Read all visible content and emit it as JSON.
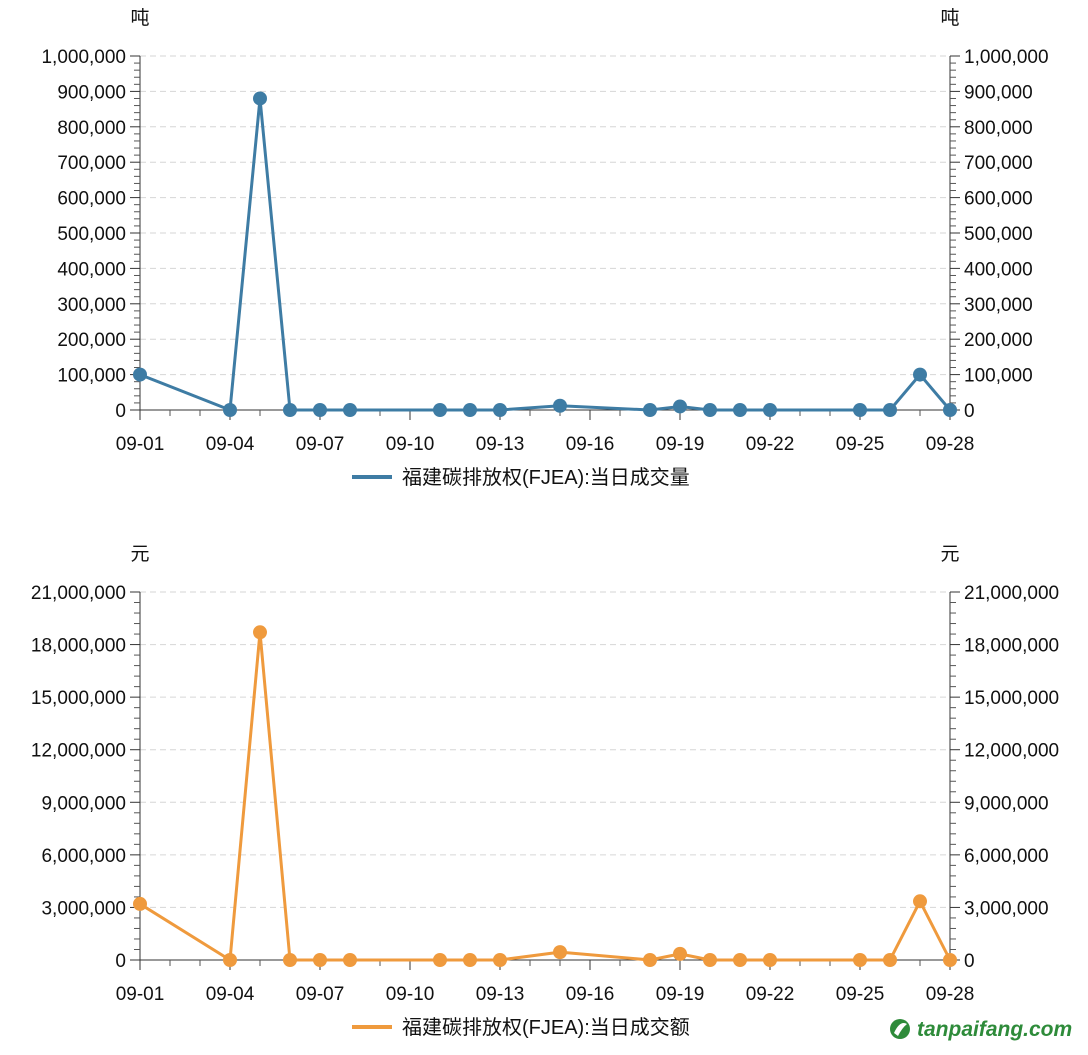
{
  "chart_data": [
    {
      "type": "line",
      "unit_left": "吨",
      "unit_right": "吨",
      "legend": "福建碳排放权(FJEA):当日成交量",
      "color": "#3e7ca4",
      "x_ticks": [
        "09-01",
        "09-04",
        "09-07",
        "09-10",
        "09-13",
        "09-16",
        "09-19",
        "09-22",
        "09-25",
        "09-28"
      ],
      "y_ticks": [
        "0",
        "100,000",
        "200,000",
        "300,000",
        "400,000",
        "500,000",
        "600,000",
        "700,000",
        "800,000",
        "900,000",
        "1,000,000"
      ],
      "ylim": [
        0,
        1000000
      ],
      "grid": true,
      "series": [
        {
          "name": "福建碳排放权(FJEA):当日成交量",
          "x": [
            "09-01",
            "09-04",
            "09-05",
            "09-06",
            "09-07",
            "09-08",
            "09-11",
            "09-12",
            "09-13",
            "09-15",
            "09-18",
            "09-19",
            "09-20",
            "09-21",
            "09-22",
            "09-25",
            "09-26",
            "09-27",
            "09-28"
          ],
          "values": [
            100000,
            0,
            880000,
            0,
            0,
            0,
            0,
            0,
            0,
            12000,
            0,
            10000,
            0,
            0,
            0,
            0,
            0,
            100000,
            0
          ]
        }
      ]
    },
    {
      "type": "line",
      "unit_left": "元",
      "unit_right": "元",
      "legend": "福建碳排放权(FJEA):当日成交额",
      "color": "#ef9a3d",
      "x_ticks": [
        "09-01",
        "09-04",
        "09-07",
        "09-10",
        "09-13",
        "09-16",
        "09-19",
        "09-22",
        "09-25",
        "09-28"
      ],
      "y_ticks": [
        "0",
        "3,000,000",
        "6,000,000",
        "9,000,000",
        "12,000,000",
        "15,000,000",
        "18,000,000",
        "21,000,000"
      ],
      "ylim": [
        0,
        21000000
      ],
      "grid": true,
      "series": [
        {
          "name": "福建碳排放权(FJEA):当日成交额",
          "x": [
            "09-01",
            "09-04",
            "09-05",
            "09-06",
            "09-07",
            "09-08",
            "09-11",
            "09-12",
            "09-13",
            "09-15",
            "09-18",
            "09-19",
            "09-20",
            "09-21",
            "09-22",
            "09-25",
            "09-26",
            "09-27",
            "09-28"
          ],
          "values": [
            3200000,
            0,
            18700000,
            0,
            0,
            0,
            0,
            0,
            0,
            450000,
            0,
            350000,
            0,
            0,
            0,
            0,
            0,
            3350000,
            0
          ]
        }
      ]
    }
  ],
  "watermark": {
    "text": "tanpaifang.com",
    "logo": "leaf-logo-icon",
    "color": "#2e8b3a"
  }
}
